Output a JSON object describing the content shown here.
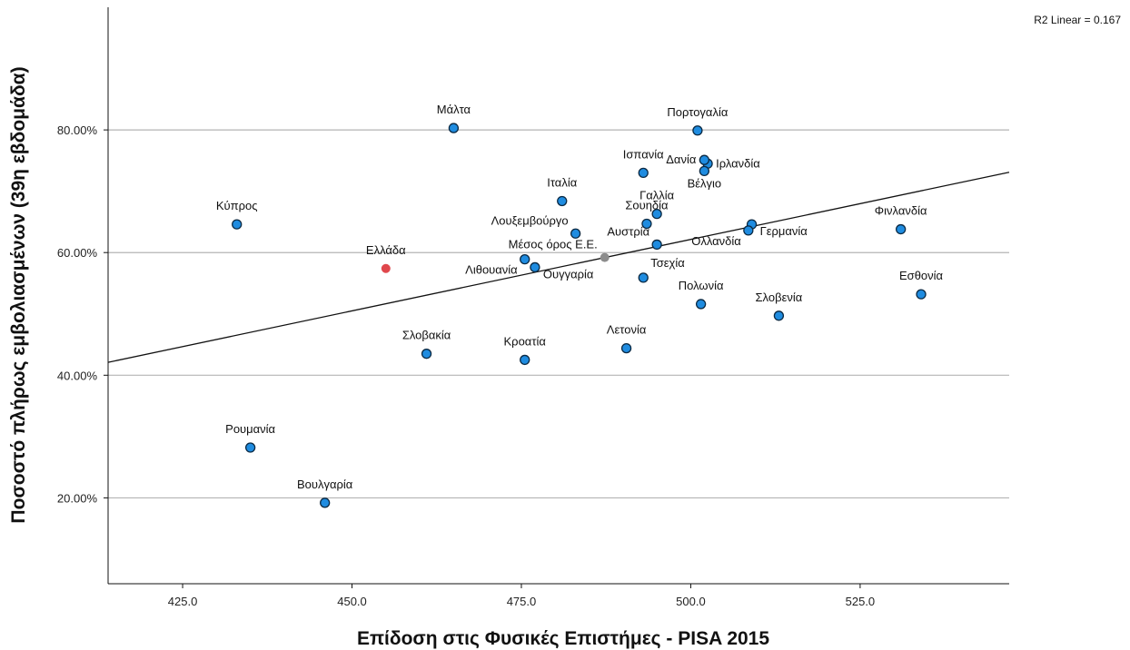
{
  "chart_data": {
    "type": "scatter",
    "title": "",
    "xlabel": "Επίδοση στις Φυσικές Επιστήμες - PISA 2015",
    "ylabel": "Ποσοστό πλήρως εμβολιασμένων (39η εβδομάδα)",
    "xlim": [
      414,
      547
    ],
    "ylim": [
      6,
      100
    ],
    "x_ticks": [
      425,
      450,
      475,
      500,
      525
    ],
    "x_tick_labels": [
      "425.0",
      "450.0",
      "475.0",
      "500.0",
      "525.0"
    ],
    "y_ticks": [
      20,
      40,
      60,
      80
    ],
    "y_tick_labels": [
      "20.00%",
      "40.00%",
      "60.00%",
      "80.00%"
    ],
    "grid": "horizontal",
    "annotation": "R2 Linear =  0.167",
    "fit_line": {
      "type": "linear",
      "x": [
        414,
        547
      ],
      "y": [
        42.1,
        73.1
      ]
    },
    "colors": {
      "point": "#1f8ce0",
      "highlight": "#e0474c",
      "average": "#8c8c8c",
      "grid": "#b4b4b4"
    },
    "points": [
      {
        "label": "Μάλτα",
        "x": 465.0,
        "y": 80.3,
        "kind": "country",
        "label_pos": "above"
      },
      {
        "label": "Πορτογαλία",
        "x": 501.0,
        "y": 79.9,
        "kind": "country",
        "label_pos": "above"
      },
      {
        "label": "Ισπανία",
        "x": 493.0,
        "y": 73.0,
        "kind": "country",
        "label_pos": "above"
      },
      {
        "label": "Ιρλανδία",
        "x": 502.5,
        "y": 74.5,
        "kind": "country",
        "label_pos": "right"
      },
      {
        "label": "Δανία",
        "x": 502.0,
        "y": 75.1,
        "kind": "country",
        "label_pos": "left"
      },
      {
        "label": "Βέλγιο",
        "x": 502.0,
        "y": 73.3,
        "kind": "country",
        "label_pos": "below"
      },
      {
        "label": "Ιταλία",
        "x": 481.0,
        "y": 68.4,
        "kind": "country",
        "label_pos": "above"
      },
      {
        "label": "Γαλλία",
        "x": 495.0,
        "y": 66.3,
        "kind": "country",
        "label_pos": "above"
      },
      {
        "label": "Σουηδία",
        "x": 493.5,
        "y": 64.7,
        "kind": "country",
        "label_pos": "above"
      },
      {
        "label": "Κύπρος",
        "x": 433.0,
        "y": 64.6,
        "kind": "country",
        "label_pos": "above"
      },
      {
        "label": "Φινλανδία",
        "x": 531.0,
        "y": 63.8,
        "kind": "country",
        "label_pos": "above"
      },
      {
        "label": "Γερμανία",
        "x": 509.0,
        "y": 64.6,
        "kind": "country",
        "label_pos": "below-right"
      },
      {
        "label": "Ολλανδία",
        "x": 508.5,
        "y": 63.6,
        "kind": "country",
        "label_pos": "below-left"
      },
      {
        "label": "Λουξεμβούργο",
        "x": 483.0,
        "y": 63.1,
        "kind": "country",
        "label_pos": "above-left"
      },
      {
        "label": "Αυστρία",
        "x": 495.0,
        "y": 61.3,
        "kind": "country",
        "label_pos": "above-left"
      },
      {
        "label": "Μέσος όρος Ε.Ε.",
        "x": 487.3,
        "y": 59.2,
        "kind": "average",
        "label_pos": "above-left"
      },
      {
        "label": "Ελλάδα",
        "x": 455.0,
        "y": 57.4,
        "kind": "highlight",
        "label_pos": "above"
      },
      {
        "label": "Λιθουανία",
        "x": 475.5,
        "y": 58.9,
        "kind": "country",
        "label_pos": "below-left"
      },
      {
        "label": "Ουγγαρία",
        "x": 477.0,
        "y": 57.6,
        "kind": "country",
        "label_pos": "below-right"
      },
      {
        "label": "Τσεχία",
        "x": 493.0,
        "y": 55.9,
        "kind": "country",
        "label_pos": "above-right"
      },
      {
        "label": "Εσθονία",
        "x": 534.0,
        "y": 53.2,
        "kind": "country",
        "label_pos": "above"
      },
      {
        "label": "Πολωνία",
        "x": 501.5,
        "y": 51.6,
        "kind": "country",
        "label_pos": "above"
      },
      {
        "label": "Σλοβενία",
        "x": 513.0,
        "y": 49.7,
        "kind": "country",
        "label_pos": "above"
      },
      {
        "label": "Λετονία",
        "x": 490.5,
        "y": 44.4,
        "kind": "country",
        "label_pos": "above"
      },
      {
        "label": "Σλοβακία",
        "x": 461.0,
        "y": 43.5,
        "kind": "country",
        "label_pos": "above"
      },
      {
        "label": "Κροατία",
        "x": 475.5,
        "y": 42.5,
        "kind": "country",
        "label_pos": "above"
      },
      {
        "label": "Ρουμανία",
        "x": 435.0,
        "y": 28.2,
        "kind": "country",
        "label_pos": "above"
      },
      {
        "label": "Βουλγαρία",
        "x": 446.0,
        "y": 19.2,
        "kind": "country",
        "label_pos": "above"
      }
    ]
  }
}
